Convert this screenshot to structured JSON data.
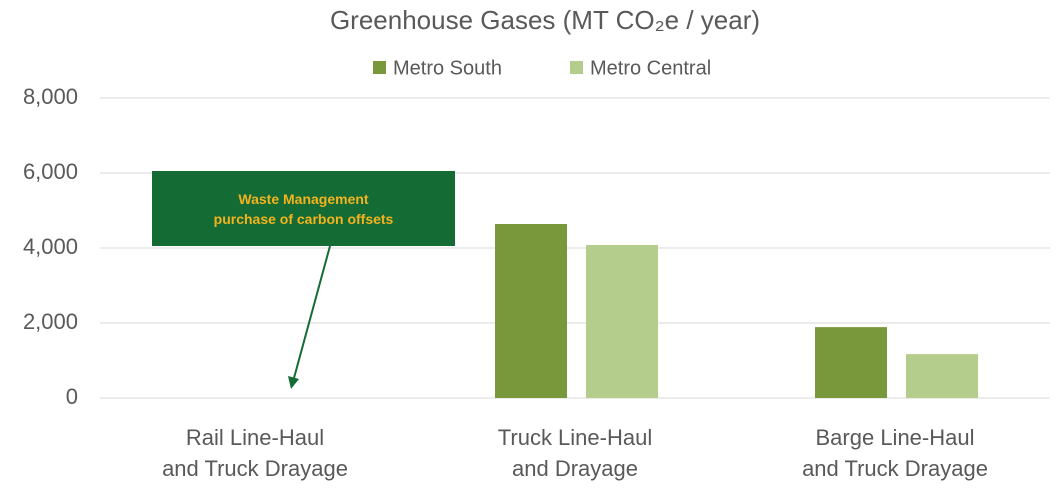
{
  "chart_data": {
    "type": "bar",
    "title": "Greenhouse Gases (MT CO₂e / year)",
    "categories": [
      "Rail Line-Haul\nand Truck Drayage",
      "Truck Line-Haul\nand Drayage",
      "Barge Line-Haul\nand Truck Drayage"
    ],
    "series": [
      {
        "name": "Metro South",
        "color": "#78983b",
        "values": [
          0,
          4640,
          1890
        ]
      },
      {
        "name": "Metro Central",
        "color": "#b4cd8c",
        "values": [
          0,
          4080,
          1170
        ]
      }
    ],
    "ylim": [
      0,
      8000
    ],
    "yticks": [
      0,
      {
        "value": 2000,
        "label": "2,000"
      },
      {
        "value": 4000,
        "label": "4,000"
      },
      {
        "value": 6000,
        "label": "6,000"
      },
      {
        "value": 8000,
        "label": "8,000"
      }
    ],
    "grid": true,
    "legend": "top",
    "annotations": [
      {
        "text": "Waste Management\npurchase of carbon offsets",
        "color": "#156b34",
        "text_color": "#f2b31e"
      }
    ]
  }
}
